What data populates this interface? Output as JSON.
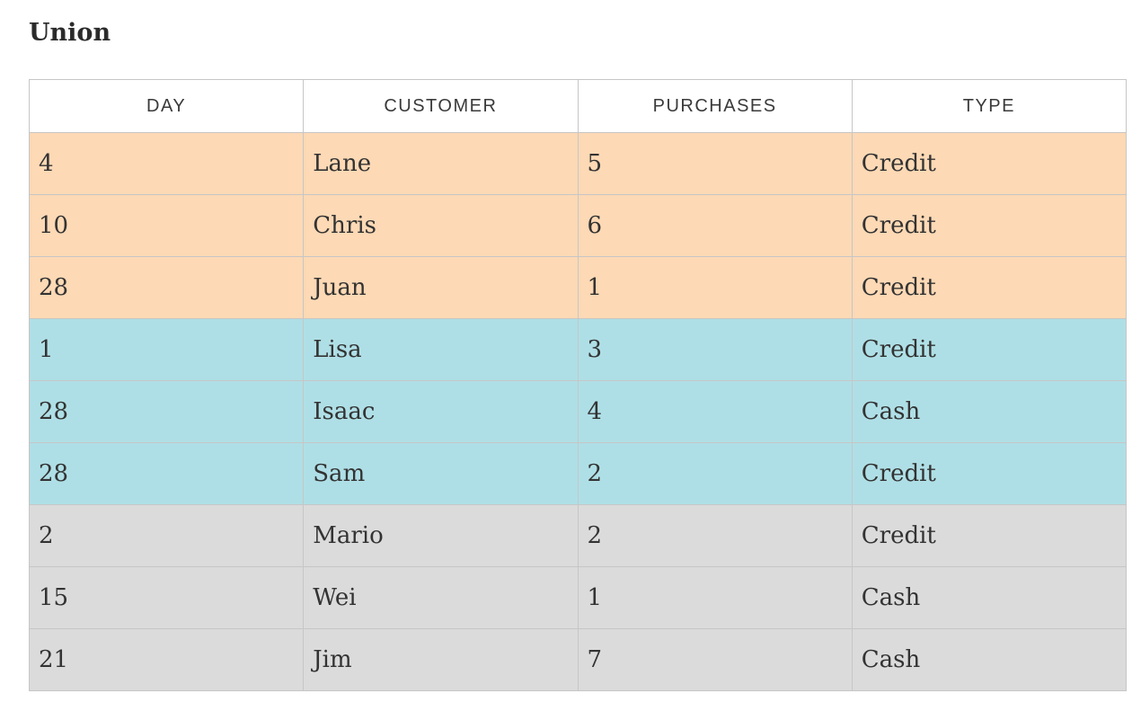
{
  "title": "Union",
  "columns": [
    "DAY",
    "CUSTOMER",
    "PURCHASES",
    "TYPE"
  ],
  "group_colors": {
    "orange": "#fdd9b5",
    "blue": "#afdfe6",
    "gray": "#dbdbdb"
  },
  "rows": [
    {
      "group": "orange",
      "cells": [
        "4",
        "Lane",
        "5",
        "Credit"
      ]
    },
    {
      "group": "orange",
      "cells": [
        "10",
        "Chris",
        "6",
        "Credit"
      ]
    },
    {
      "group": "orange",
      "cells": [
        "28",
        "Juan",
        "1",
        "Credit"
      ]
    },
    {
      "group": "blue",
      "cells": [
        "1",
        "Lisa",
        "3",
        "Credit"
      ]
    },
    {
      "group": "blue",
      "cells": [
        "28",
        "Isaac",
        "4",
        "Cash"
      ]
    },
    {
      "group": "blue",
      "cells": [
        "28",
        "Sam",
        "2",
        "Credit"
      ]
    },
    {
      "group": "gray",
      "cells": [
        "2",
        "Mario",
        "2",
        "Credit"
      ]
    },
    {
      "group": "gray",
      "cells": [
        "15",
        "Wei",
        "1",
        "Cash"
      ]
    },
    {
      "group": "gray",
      "cells": [
        "21",
        "Jim",
        "7",
        "Cash"
      ]
    }
  ]
}
